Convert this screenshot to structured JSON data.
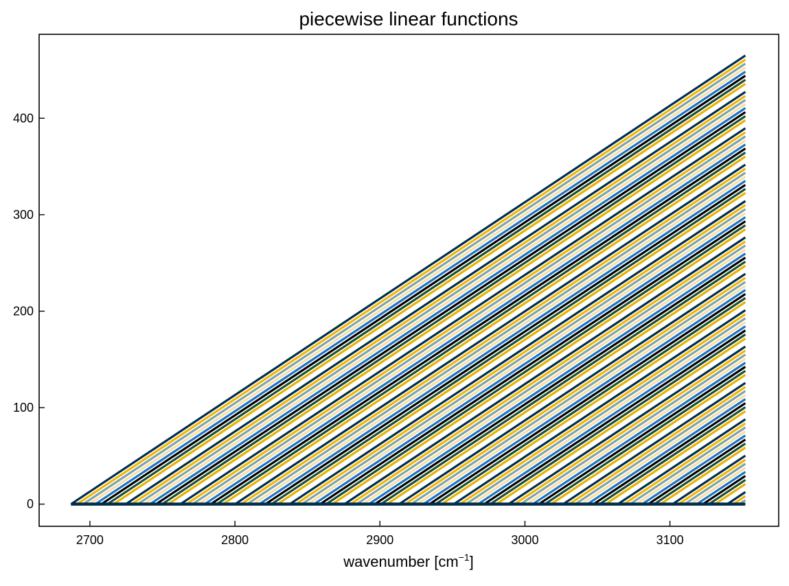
{
  "chart_data": {
    "type": "line",
    "title": "piecewise linear functions",
    "xlabel": "wavenumber [cm",
    "xlabel_sup": "−1",
    "xlabel_close": "]",
    "ylabel": "",
    "xlim": [
      2665,
      3175
    ],
    "ylim": [
      -23,
      487
    ],
    "xticks": [
      2700,
      2800,
      2900,
      3000,
      3100
    ],
    "yticks": [
      0,
      100,
      200,
      300,
      400
    ],
    "grid": false,
    "legend": "none",
    "colors": [
      "#002d4a",
      "#f0b400",
      "#7ea3a8",
      "#f5dfa8",
      "#1b73c2",
      "#000000",
      "#1d4f2f",
      "#e7b000",
      "#ffffff"
    ],
    "x_start": 2687,
    "x_end": 3152,
    "series_count": 111,
    "ramp_start_first": 2687,
    "ramp_start_step": 4.19,
    "slope": 1.0
  }
}
